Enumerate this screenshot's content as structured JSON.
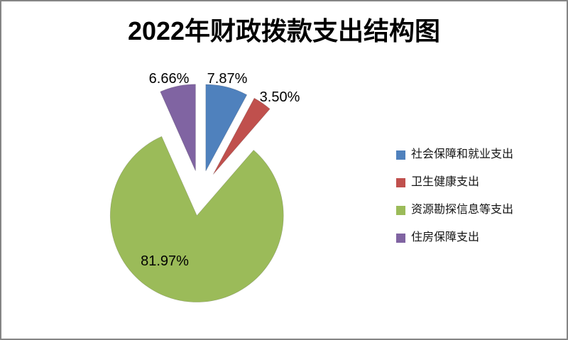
{
  "chart_data": {
    "type": "pie",
    "title": "2022年财政拨款支出结构图",
    "exploded": true,
    "start_angle_deg": 0,
    "direction": "clockwise",
    "label_style": "percent, 2 decimals, outside for small slices, inside for largest",
    "legend_position": "right",
    "background_color": "#ffffff",
    "border_color": "#858585",
    "slices": [
      {
        "name": "社会保障和就业支出",
        "value": 7.87,
        "label": "7.87%",
        "color": "#4F81BD"
      },
      {
        "name": "卫生健康支出",
        "value": 3.5,
        "label": "3.50%",
        "color": "#C0504D"
      },
      {
        "name": "资源勘探信息等支出",
        "value": 81.97,
        "label": "81.97%",
        "color": "#9BBB59"
      },
      {
        "name": "住房保障支出",
        "value": 6.66,
        "label": "6.66%",
        "color": "#8064A2"
      }
    ]
  }
}
